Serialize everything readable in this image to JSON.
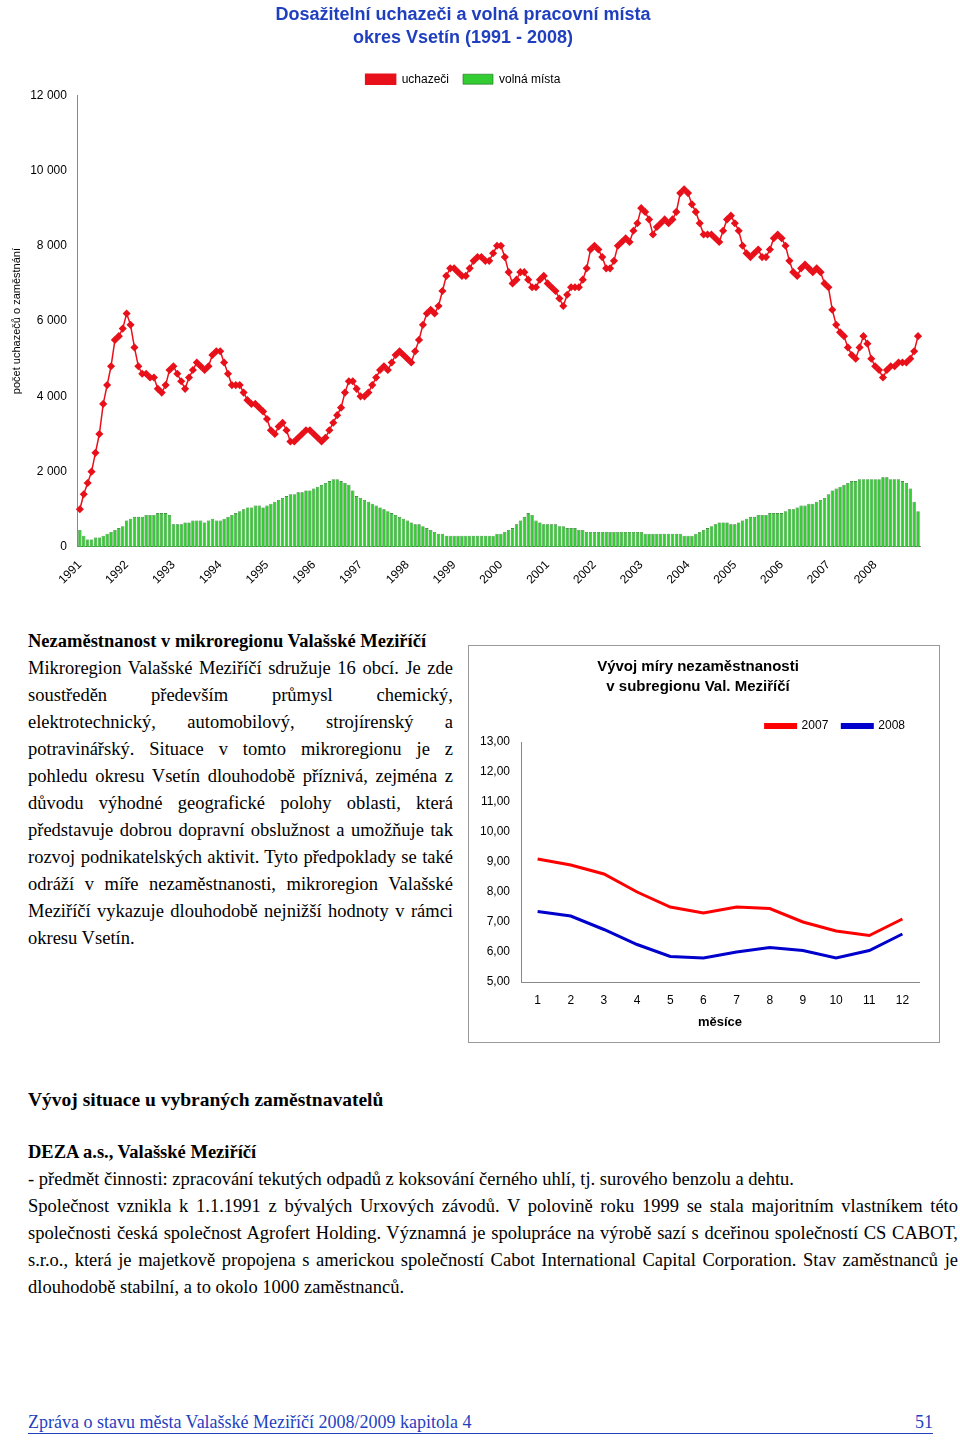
{
  "chart_data": [
    {
      "type": "bar",
      "title": "Dosažitelní uchazeči a volná pracovní místa",
      "subtitle": "okres Vsetín (1991 - 2008)",
      "y_label": "počet uchazečů o zaměstnání",
      "legend": "top",
      "grid": false,
      "ylim": [
        0,
        12000
      ],
      "yticks": [
        0,
        {
          "value": 2000,
          "label": "2 000"
        },
        {
          "value": 4000,
          "label": "4 000"
        },
        {
          "value": 6000,
          "label": "6 000"
        },
        {
          "value": 8000,
          "label": "8 000"
        },
        {
          "value": 10000,
          "label": "10 000"
        },
        {
          "value": 12000,
          "label": "12 000"
        }
      ],
      "categories": [
        "1991",
        null,
        null,
        null,
        null,
        null,
        null,
        null,
        null,
        null,
        null,
        null,
        "1992",
        null,
        null,
        null,
        null,
        null,
        null,
        null,
        null,
        null,
        null,
        null,
        "1993",
        null,
        null,
        null,
        null,
        null,
        null,
        null,
        null,
        null,
        null,
        null,
        "1994",
        null,
        null,
        null,
        null,
        null,
        null,
        null,
        null,
        null,
        null,
        null,
        "1995",
        null,
        null,
        null,
        null,
        null,
        null,
        null,
        null,
        null,
        null,
        null,
        "1996",
        null,
        null,
        null,
        null,
        null,
        null,
        null,
        null,
        null,
        null,
        null,
        "1997",
        null,
        null,
        null,
        null,
        null,
        null,
        null,
        null,
        null,
        null,
        null,
        "1998",
        null,
        null,
        null,
        null,
        null,
        null,
        null,
        null,
        null,
        null,
        null,
        "1999",
        null,
        null,
        null,
        null,
        null,
        null,
        null,
        null,
        null,
        null,
        null,
        "2000",
        null,
        null,
        null,
        null,
        null,
        null,
        null,
        null,
        null,
        null,
        null,
        "2001",
        null,
        null,
        null,
        null,
        null,
        null,
        null,
        null,
        null,
        null,
        null,
        "2002",
        null,
        null,
        null,
        null,
        null,
        null,
        null,
        null,
        null,
        null,
        null,
        "2003",
        null,
        null,
        null,
        null,
        null,
        null,
        null,
        null,
        null,
        null,
        null,
        "2004",
        null,
        null,
        null,
        null,
        null,
        null,
        null,
        null,
        null,
        null,
        null,
        "2005",
        null,
        null,
        null,
        null,
        null,
        null,
        null,
        null,
        null,
        null,
        null,
        "2006",
        null,
        null,
        null,
        null,
        null,
        null,
        null,
        null,
        null,
        null,
        null,
        "2007",
        null,
        null,
        null,
        null,
        null,
        null,
        null,
        null,
        null,
        null,
        null,
        "2008",
        null,
        null,
        null,
        null,
        null,
        null,
        null,
        null,
        null,
        null,
        null
      ],
      "series": [
        {
          "name": "volná místa",
          "type": "bar",
          "color": "#33cc33",
          "values": [
            450,
            300,
            200,
            200,
            250,
            250,
            300,
            350,
            400,
            450,
            500,
            550,
            700,
            750,
            800,
            800,
            800,
            850,
            850,
            850,
            900,
            900,
            900,
            850,
            600,
            600,
            600,
            650,
            650,
            700,
            700,
            700,
            650,
            700,
            750,
            700,
            700,
            750,
            800,
            850,
            900,
            950,
            1000,
            1050,
            1050,
            1100,
            1100,
            1050,
            1100,
            1150,
            1200,
            1250,
            1300,
            1350,
            1400,
            1400,
            1450,
            1450,
            1500,
            1500,
            1550,
            1600,
            1650,
            1700,
            1750,
            1800,
            1800,
            1750,
            1700,
            1650,
            1500,
            1350,
            1300,
            1250,
            1200,
            1150,
            1100,
            1050,
            1000,
            950,
            900,
            850,
            800,
            750,
            700,
            650,
            600,
            600,
            550,
            500,
            450,
            400,
            350,
            350,
            300,
            300,
            300,
            300,
            300,
            300,
            300,
            300,
            300,
            300,
            300,
            300,
            300,
            350,
            350,
            400,
            450,
            500,
            600,
            700,
            800,
            900,
            850,
            700,
            650,
            600,
            600,
            600,
            600,
            550,
            550,
            500,
            500,
            500,
            450,
            450,
            400,
            400,
            400,
            400,
            400,
            400,
            400,
            400,
            400,
            400,
            400,
            400,
            400,
            400,
            400,
            350,
            350,
            350,
            350,
            350,
            350,
            350,
            350,
            350,
            350,
            300,
            300,
            300,
            350,
            400,
            450,
            500,
            550,
            600,
            650,
            650,
            650,
            600,
            600,
            650,
            700,
            750,
            800,
            800,
            850,
            850,
            850,
            900,
            900,
            900,
            900,
            950,
            1000,
            1000,
            1050,
            1100,
            1100,
            1150,
            1150,
            1200,
            1250,
            1300,
            1400,
            1500,
            1550,
            1600,
            1650,
            1700,
            1750,
            1750,
            1800,
            1800,
            1800,
            1800,
            1800,
            1800,
            1850,
            1850,
            1800,
            1800,
            1800,
            1750,
            1700,
            1550,
            1200,
            950
          ]
        },
        {
          "name": "uchazeči",
          "type": "line",
          "color": "#e8101a",
          "marker": "diamond",
          "line_style": "solid",
          "values": [
            1000,
            1400,
            1700,
            2000,
            2500,
            3000,
            3800,
            4300,
            4800,
            5500,
            5600,
            5800,
            6200,
            5900,
            5300,
            4800,
            4600,
            4600,
            4500,
            4500,
            4200,
            4100,
            4300,
            4700,
            4800,
            4600,
            4400,
            4200,
            4500,
            4700,
            4900,
            4800,
            4700,
            4800,
            5100,
            5200,
            5200,
            4900,
            4600,
            4300,
            4300,
            4300,
            4100,
            3900,
            3800,
            3800,
            3700,
            3600,
            3400,
            3100,
            3000,
            3200,
            3300,
            3100,
            2800,
            2800,
            2900,
            3000,
            3100,
            3100,
            3000,
            2900,
            2800,
            2900,
            3100,
            3300,
            3500,
            3700,
            4100,
            4400,
            4400,
            4200,
            4000,
            4000,
            4100,
            4300,
            4500,
            4700,
            4800,
            4700,
            4900,
            5100,
            5200,
            5100,
            5000,
            4900,
            5200,
            5500,
            5900,
            6200,
            6300,
            6200,
            6400,
            6800,
            7200,
            7400,
            7400,
            7300,
            7200,
            7200,
            7400,
            7600,
            7700,
            7700,
            7600,
            7600,
            7800,
            8000,
            8000,
            7700,
            7300,
            7000,
            7100,
            7300,
            7300,
            7100,
            6900,
            6900,
            7100,
            7200,
            7000,
            6900,
            6800,
            6600,
            6400,
            6700,
            6900,
            6900,
            6900,
            7100,
            7400,
            7900,
            8000,
            7900,
            7700,
            7400,
            7400,
            7600,
            8000,
            8100,
            8200,
            8100,
            8400,
            8600,
            9000,
            8900,
            8700,
            8300,
            8500,
            8600,
            8700,
            8600,
            8700,
            8900,
            9400,
            9500,
            9400,
            9100,
            8900,
            8600,
            8300,
            8300,
            8300,
            8200,
            8100,
            8400,
            8700,
            8800,
            8600,
            8400,
            8000,
            7800,
            7700,
            7800,
            7900,
            7700,
            7700,
            7900,
            8200,
            8300,
            8200,
            8000,
            7600,
            7300,
            7200,
            7400,
            7500,
            7400,
            7300,
            7400,
            7300,
            7000,
            6900,
            6300,
            5900,
            5700,
            5600,
            5300,
            5100,
            5000,
            5300,
            5600,
            5400,
            5000,
            4800,
            4700,
            4500,
            4700,
            4800,
            4800,
            4900,
            4900,
            4900,
            5000,
            5200,
            5600
          ]
        }
      ]
    },
    {
      "type": "line",
      "title": "Vývoj míry nezaměstnanosti",
      "subtitle": "v subregionu Val. Meziříčí",
      "x_label": "měsíce",
      "legend": "upper right",
      "grid": false,
      "ylim": [
        5,
        13
      ],
      "yticks": [
        {
          "value": 5,
          "label": "5,00"
        },
        {
          "value": 6,
          "label": "6,00"
        },
        {
          "value": 7,
          "label": "7,00"
        },
        {
          "value": 8,
          "label": "8,00"
        },
        {
          "value": 9,
          "label": "9,00"
        },
        {
          "value": 10,
          "label": "10,00"
        },
        {
          "value": 11,
          "label": "11,00"
        },
        {
          "value": 12,
          "label": "12,00"
        },
        {
          "value": 13,
          "label": "13,00"
        }
      ],
      "categories": [
        "1",
        "2",
        "3",
        "4",
        "5",
        "6",
        "7",
        "8",
        "9",
        "10",
        "11",
        "12"
      ],
      "series": [
        {
          "name": "2007",
          "color": "#ff0000",
          "line_style": "solid",
          "values": [
            9.1,
            8.9,
            8.6,
            8.0,
            7.5,
            7.3,
            7.5,
            7.45,
            7.0,
            6.7,
            6.55,
            7.1
          ]
        },
        {
          "name": "2008",
          "color": "#0000cc",
          "line_style": "solid",
          "values": [
            7.35,
            7.2,
            6.75,
            6.25,
            5.85,
            5.8,
            6.0,
            6.15,
            6.05,
            5.8,
            6.05,
            6.6
          ]
        }
      ]
    }
  ],
  "document": {
    "section1": {
      "heading": "Nezaměstnanost v mikroregionu Valašské Meziříčí",
      "paragraph": "Mikroregion Valašské Meziříčí sdružuje 16 obcí. Je zde soustředěn především průmysl chemický, elektrotechnický, automobilový, strojírenský a potravinářský. Situace v tomto mikroregionu je z pohledu okresu Vsetín dlouhodobě příznivá, zejména z důvodu výhodné geografické polohy oblasti, která představuje dobrou dopravní obslužnost a umožňuje tak rozvoj podnikatelských aktivit. Tyto předpoklady se také odráží v míře nezaměstnanosti, mikroregion Valašské Meziříčí vykazuje dlouhodobě nejnižší hodnoty v rámci okresu Vsetín."
    },
    "section2": {
      "heading": "Vývoj situace u vybraných zaměstnavatelů",
      "employer": "DEZA a.s., Valašské Meziříčí",
      "bullet": "-   předmět činnosti: zpracování tekutých odpadů z koksování černého uhlí, tj. surového benzolu a dehtu.",
      "paragraph": "Společnost vznikla k 1.1.1991 z bývalých Urxových závodů. V polovině roku 1999 se stala majoritním vlastníkem této společnosti česká společnost Agrofert Holding. Významná je spolupráce na výrobě sazí s dceřinou společností CS CABOT, s.r.o., která je majetkově propojena s americkou společností Cabot International Capital Corporation. Stav zaměstnanců je dlouhodobě stabilní, a to okolo 1000 zaměstnanců."
    },
    "footer": {
      "left": "Zpráva o stavu města Valašské Meziříčí 2008/2009 kapitola 4",
      "right": "51"
    }
  }
}
